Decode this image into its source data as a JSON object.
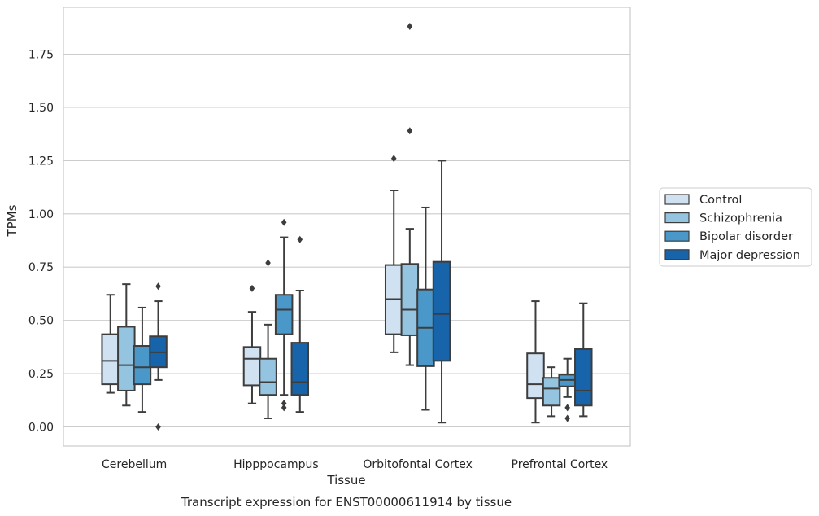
{
  "chart_data": {
    "type": "box",
    "xlabel": "Tissue",
    "ylabel": "TPMs",
    "caption": "Transcript expression for ENST00000611914 by tissue",
    "ylim": [
      -0.09,
      1.97
    ],
    "yticks": [
      0.0,
      0.25,
      0.5,
      0.75,
      1.0,
      1.25,
      1.5,
      1.75
    ],
    "ytick_labels": [
      "0.00",
      "0.25",
      "0.50",
      "0.75",
      "1.00",
      "1.25",
      "1.50",
      "1.75"
    ],
    "grid": "horizontal",
    "legend_position": "right",
    "categories": [
      "Cerebellum",
      "Hipppocampus",
      "Orbitofontal Cortex",
      "Prefrontal Cortex"
    ],
    "series": [
      {
        "name": "Control",
        "color": "#d0e1f2",
        "boxes": [
          {
            "whislo": 0.16,
            "q1": 0.2,
            "med": 0.31,
            "q3": 0.435,
            "whishi": 0.62,
            "fliers": []
          },
          {
            "whislo": 0.11,
            "q1": 0.195,
            "med": 0.32,
            "q3": 0.375,
            "whishi": 0.54,
            "fliers": [
              0.65
            ]
          },
          {
            "whislo": 0.35,
            "q1": 0.435,
            "med": 0.6,
            "q3": 0.76,
            "whishi": 1.11,
            "fliers": [
              1.26
            ]
          },
          {
            "whislo": 0.02,
            "q1": 0.135,
            "med": 0.2,
            "q3": 0.345,
            "whishi": 0.59,
            "fliers": []
          }
        ]
      },
      {
        "name": "Schizophrenia",
        "color": "#94c4df",
        "boxes": [
          {
            "whislo": 0.1,
            "q1": 0.17,
            "med": 0.29,
            "q3": 0.47,
            "whishi": 0.67,
            "fliers": []
          },
          {
            "whislo": 0.04,
            "q1": 0.15,
            "med": 0.21,
            "q3": 0.32,
            "whishi": 0.48,
            "fliers": [
              0.77
            ]
          },
          {
            "whislo": 0.29,
            "q1": 0.43,
            "med": 0.55,
            "q3": 0.765,
            "whishi": 0.93,
            "fliers": [
              1.39,
              1.88
            ]
          },
          {
            "whislo": 0.05,
            "q1": 0.1,
            "med": 0.18,
            "q3": 0.23,
            "whishi": 0.28,
            "fliers": []
          }
        ]
      },
      {
        "name": "Bipolar disorder",
        "color": "#4a98c9",
        "boxes": [
          {
            "whislo": 0.07,
            "q1": 0.2,
            "med": 0.28,
            "q3": 0.38,
            "whishi": 0.56,
            "fliers": []
          },
          {
            "whislo": 0.15,
            "q1": 0.435,
            "med": 0.55,
            "q3": 0.62,
            "whishi": 0.89,
            "fliers": [
              0.09,
              0.11,
              0.96
            ]
          },
          {
            "whislo": 0.08,
            "q1": 0.285,
            "med": 0.465,
            "q3": 0.645,
            "whishi": 1.03,
            "fliers": []
          },
          {
            "whislo": 0.14,
            "q1": 0.19,
            "med": 0.22,
            "q3": 0.245,
            "whishi": 0.32,
            "fliers": [
              0.04,
              0.09
            ]
          }
        ]
      },
      {
        "name": "Major depression",
        "color": "#1764ab",
        "boxes": [
          {
            "whislo": 0.22,
            "q1": 0.28,
            "med": 0.35,
            "q3": 0.425,
            "whishi": 0.59,
            "fliers": [
              0.0,
              0.66
            ]
          },
          {
            "whislo": 0.07,
            "q1": 0.15,
            "med": 0.21,
            "q3": 0.395,
            "whishi": 0.64,
            "fliers": [
              0.88
            ]
          },
          {
            "whislo": 0.02,
            "q1": 0.31,
            "med": 0.53,
            "q3": 0.775,
            "whishi": 1.25,
            "fliers": []
          },
          {
            "whislo": 0.05,
            "q1": 0.1,
            "med": 0.17,
            "q3": 0.365,
            "whishi": 0.58,
            "fliers": []
          }
        ]
      }
    ]
  }
}
